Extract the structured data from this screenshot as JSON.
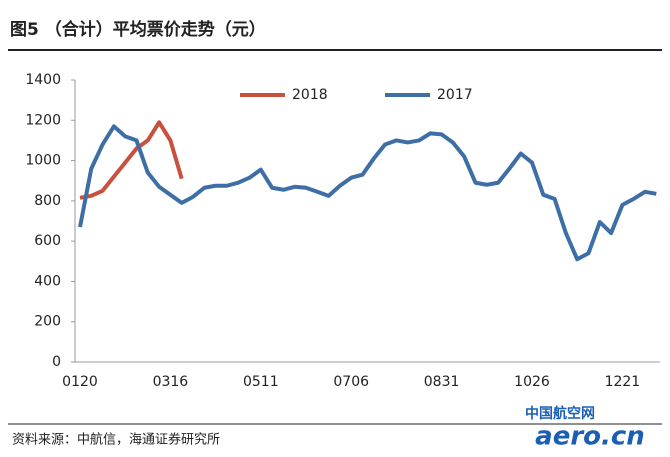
{
  "chart_data": {
    "type": "line",
    "title": "图5 （合计）平均票价走势（元）",
    "source": "资料来源：中航信，海通证券研究所",
    "watermark": {
      "cn": "中国航空网",
      "en": "aero.cn"
    },
    "categories": [
      "0120",
      null,
      null,
      null,
      null,
      null,
      null,
      null,
      "0316",
      null,
      null,
      null,
      null,
      null,
      null,
      null,
      "0511",
      null,
      null,
      null,
      null,
      null,
      null,
      null,
      "0706",
      null,
      null,
      null,
      null,
      null,
      null,
      null,
      "0831",
      null,
      null,
      null,
      null,
      null,
      null,
      null,
      "1026",
      null,
      null,
      null,
      null,
      null,
      null,
      null,
      "1221",
      null,
      null,
      null
    ],
    "series": [
      {
        "name": "2018",
        "color": "#c8503c",
        "values": [
          815,
          825,
          850,
          920,
          990,
          1060,
          1100,
          1190,
          1100,
          910,
          null,
          null,
          null,
          null,
          null,
          null,
          null,
          null,
          null,
          null,
          null,
          null,
          null,
          null,
          null,
          null,
          null,
          null,
          null,
          null,
          null,
          null,
          null,
          null,
          null,
          null,
          null,
          null,
          null,
          null,
          null,
          null,
          null,
          null,
          null,
          null,
          null,
          null,
          null,
          null,
          null,
          null
        ]
      },
      {
        "name": "2017",
        "color": "#3e6ea6",
        "values": [
          670,
          960,
          1080,
          1170,
          1120,
          1100,
          940,
          870,
          830,
          790,
          820,
          865,
          875,
          875,
          890,
          915,
          955,
          865,
          855,
          870,
          865,
          845,
          825,
          875,
          915,
          930,
          1010,
          1080,
          1100,
          1090,
          1100,
          1135,
          1130,
          1090,
          1020,
          890,
          880,
          890,
          960,
          1035,
          990,
          830,
          810,
          640,
          510,
          540,
          695,
          640,
          780,
          810,
          845,
          835
        ]
      }
    ],
    "ylim": [
      0,
      1400
    ],
    "yticks": [
      0,
      200,
      400,
      600,
      800,
      1000,
      1200,
      1400
    ],
    "grid": false
  }
}
